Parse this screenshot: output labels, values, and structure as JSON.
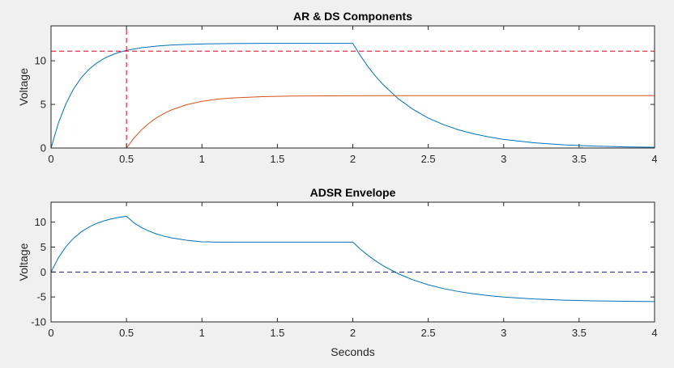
{
  "chart_data": [
    {
      "type": "line",
      "title": "AR & DS Components",
      "xlabel": "",
      "ylabel": "Voltage",
      "xlim": [
        0,
        4
      ],
      "ylim": [
        0,
        14
      ],
      "xticks": [
        0,
        0.5,
        1,
        1.5,
        2,
        2.5,
        3,
        3.5,
        4
      ],
      "xtick_labels": [
        "0",
        "0.5",
        "1",
        "1.5",
        "2",
        "2.5",
        "3",
        "3.5",
        "4"
      ],
      "yticks": [
        0,
        5,
        10
      ],
      "ytick_labels": [
        "0",
        "5",
        "10"
      ],
      "grid": false,
      "series": [
        {
          "color": "#0072bd",
          "style": "solid",
          "x": [
            0,
            0.05,
            0.1,
            0.15,
            0.2,
            0.25,
            0.3,
            0.35,
            0.4,
            0.45,
            0.5,
            0.6,
            0.7,
            0.8,
            0.9,
            1.0,
            1.2,
            1.4,
            1.6,
            1.8,
            2.0,
            2.05,
            2.1,
            2.15,
            2.2,
            2.3,
            2.4,
            2.5,
            2.6,
            2.7,
            2.8,
            2.9,
            3.0,
            3.2,
            3.4,
            3.6,
            3.8,
            4.0
          ],
          "values": [
            0,
            2.93,
            5.13,
            6.79,
            8.05,
            8.99,
            9.71,
            10.25,
            10.65,
            10.96,
            11.19,
            11.5,
            11.68,
            11.81,
            11.88,
            11.93,
            11.97,
            11.99,
            12.0,
            12.0,
            12.0,
            10.59,
            9.35,
            8.25,
            7.28,
            5.67,
            4.42,
            3.44,
            2.68,
            2.09,
            1.63,
            1.27,
            0.99,
            0.6,
            0.36,
            0.22,
            0.13,
            0.08
          ]
        },
        {
          "color": "#d95319",
          "style": "solid",
          "x": [
            0,
            0.5,
            0.55,
            0.6,
            0.65,
            0.7,
            0.75,
            0.8,
            0.9,
            1.0,
            1.1,
            1.2,
            1.4,
            1.6,
            2.0,
            2.5,
            3.0,
            4.0
          ],
          "values": [
            0,
            0,
            1.15,
            2.09,
            2.85,
            3.47,
            3.97,
            4.38,
            4.97,
            5.35,
            5.6,
            5.74,
            5.89,
            5.96,
            5.99,
            6.0,
            6.0,
            6.0
          ]
        },
        {
          "color": "#e8001c",
          "style": "dashed",
          "x": [
            0,
            4
          ],
          "values": [
            11.1,
            11.1
          ]
        },
        {
          "color": "#e8001c",
          "style": "dashed",
          "x": [
            0.5,
            0.5
          ],
          "values": [
            0,
            14
          ]
        }
      ]
    },
    {
      "type": "line",
      "title": "ADSR Envelope",
      "xlabel": "Seconds",
      "ylabel": "Voltage",
      "xlim": [
        0,
        4
      ],
      "ylim": [
        -10,
        14
      ],
      "xticks": [
        0,
        0.5,
        1,
        1.5,
        2,
        2.5,
        3,
        3.5,
        4
      ],
      "xtick_labels": [
        "0",
        "0.5",
        "1",
        "1.5",
        "2",
        "2.5",
        "3",
        "3.5",
        "4"
      ],
      "yticks": [
        -10,
        -5,
        0,
        5,
        10
      ],
      "ytick_labels": [
        "-10",
        "-5",
        "0",
        "5",
        "10"
      ],
      "grid": false,
      "series": [
        {
          "color": "#0072bd",
          "style": "solid",
          "x": [
            0,
            0.05,
            0.1,
            0.15,
            0.2,
            0.25,
            0.3,
            0.35,
            0.4,
            0.45,
            0.5,
            0.55,
            0.6,
            0.65,
            0.7,
            0.75,
            0.8,
            0.9,
            1.0,
            1.1,
            1.2,
            1.4,
            1.6,
            1.8,
            2.0,
            2.05,
            2.1,
            2.15,
            2.2,
            2.3,
            2.4,
            2.5,
            2.6,
            2.7,
            2.8,
            2.9,
            3.0,
            3.2,
            3.4,
            3.6,
            3.8,
            4.0
          ],
          "values": [
            0,
            2.93,
            5.13,
            6.79,
            8.05,
            8.99,
            9.71,
            10.25,
            10.65,
            10.96,
            11.19,
            9.85,
            8.91,
            8.19,
            7.62,
            7.18,
            6.84,
            6.35,
            6.06,
            6.0,
            6.0,
            6.0,
            6.0,
            6.0,
            6.0,
            4.59,
            3.35,
            2.25,
            1.28,
            -0.33,
            -1.58,
            -2.56,
            -3.32,
            -3.91,
            -4.37,
            -4.73,
            -5.01,
            -5.4,
            -5.64,
            -5.78,
            -5.87,
            -5.92
          ]
        },
        {
          "color": "#1f1f8f",
          "style": "dashed",
          "x": [
            0,
            4
          ],
          "values": [
            0,
            0
          ]
        }
      ]
    }
  ]
}
